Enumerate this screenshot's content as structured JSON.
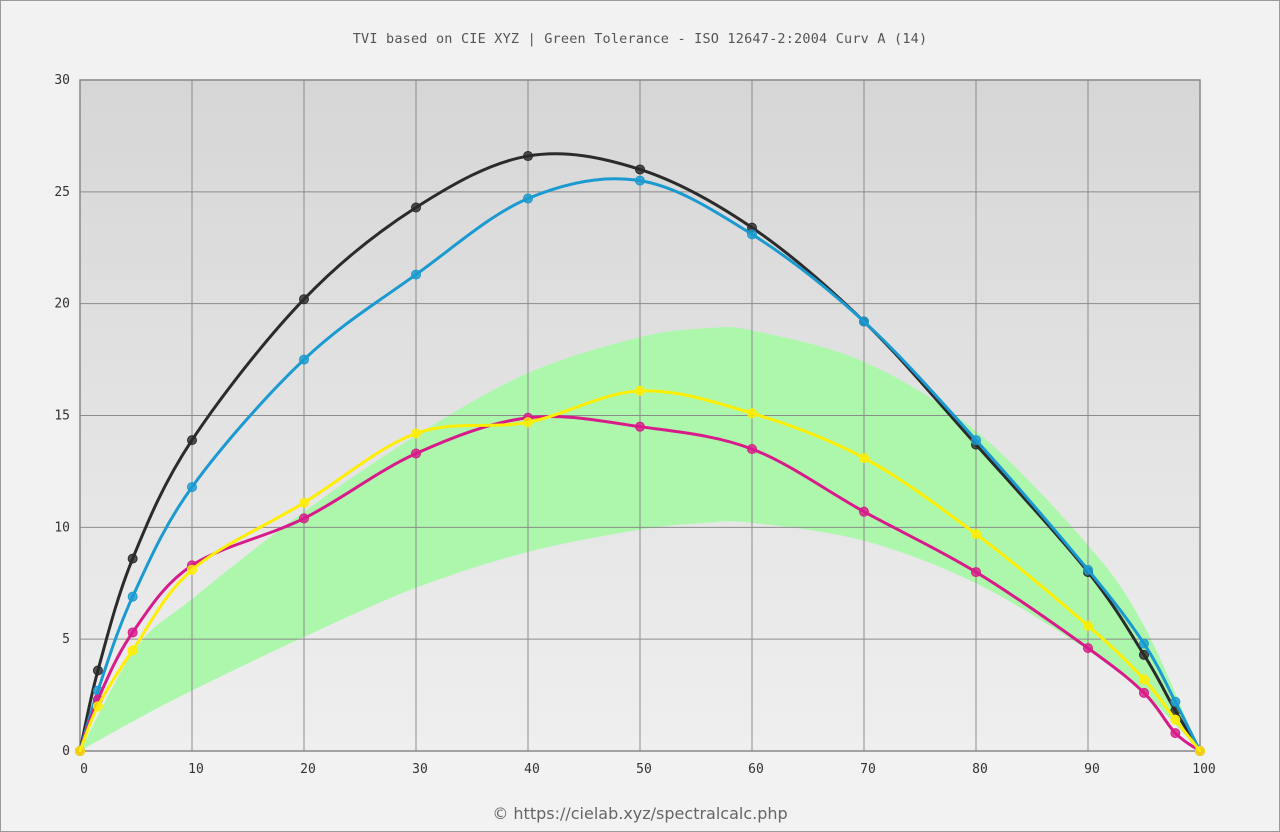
{
  "title": "TVI based on CIE XYZ  |  Green Tolerance - ISO 12647-2:2004 Curv A (14)",
  "footer": "© https://cielab.xyz/spectralcalc.php",
  "chart_data": {
    "type": "line",
    "xlim": [
      0,
      100
    ],
    "ylim": [
      0,
      30
    ],
    "x_ticks": [
      0,
      10,
      20,
      30,
      40,
      50,
      60,
      70,
      80,
      90,
      100
    ],
    "y_ticks": [
      0,
      5,
      10,
      15,
      20,
      25,
      30
    ],
    "grid": true,
    "background_top": "#d6d6d6",
    "background_bottom": "#efefef",
    "tolerance_band": {
      "color": "#adf7ad",
      "x": [
        0,
        5,
        10,
        20,
        30,
        40,
        50,
        56,
        60,
        70,
        80,
        90,
        95,
        100
      ],
      "upper": [
        0,
        4.6,
        6.8,
        10.7,
        14.1,
        16.9,
        18.5,
        18.9,
        18.8,
        17.4,
        14.3,
        9.2,
        5.6,
        0
      ],
      "lower": [
        0,
        1.4,
        2.7,
        5.1,
        7.3,
        8.9,
        9.9,
        10.2,
        10.2,
        9.4,
        7.5,
        4.5,
        2.6,
        0
      ]
    },
    "series": [
      {
        "color": "#2b2b2b",
        "x": [
          0,
          1.6,
          4.7,
          10,
          20,
          30,
          40,
          50,
          60,
          70,
          80,
          90,
          95,
          97.8,
          100
        ],
        "y": [
          0,
          3.6,
          8.6,
          13.9,
          20.2,
          24.3,
          26.6,
          26.0,
          23.4,
          19.2,
          13.7,
          8.0,
          4.3,
          1.8,
          0
        ]
      },
      {
        "color": "#1a9ad0",
        "x": [
          0,
          1.6,
          4.7,
          10,
          20,
          30,
          40,
          50,
          60,
          70,
          80,
          90,
          95,
          97.8,
          100
        ],
        "y": [
          0,
          2.7,
          6.9,
          11.8,
          17.5,
          21.3,
          24.7,
          25.5,
          23.1,
          19.2,
          13.9,
          8.1,
          4.8,
          2.2,
          0
        ]
      },
      {
        "color": "#d81b8a",
        "x": [
          0,
          1.6,
          4.7,
          10,
          20,
          30,
          40,
          50,
          60,
          70,
          80,
          90,
          95,
          97.8,
          100
        ],
        "y": [
          0,
          2.3,
          5.3,
          8.3,
          10.4,
          13.3,
          14.9,
          14.5,
          13.5,
          10.7,
          8.0,
          4.6,
          2.6,
          0.8,
          0
        ]
      },
      {
        "color": "#ffee00",
        "x": [
          0,
          1.6,
          4.7,
          10,
          20,
          30,
          40,
          50,
          60,
          70,
          80,
          90,
          95,
          97.8,
          100
        ],
        "y": [
          0,
          2.0,
          4.5,
          8.1,
          11.1,
          14.2,
          14.7,
          16.1,
          15.1,
          13.1,
          9.7,
          5.6,
          3.2,
          1.4,
          0
        ]
      }
    ]
  }
}
